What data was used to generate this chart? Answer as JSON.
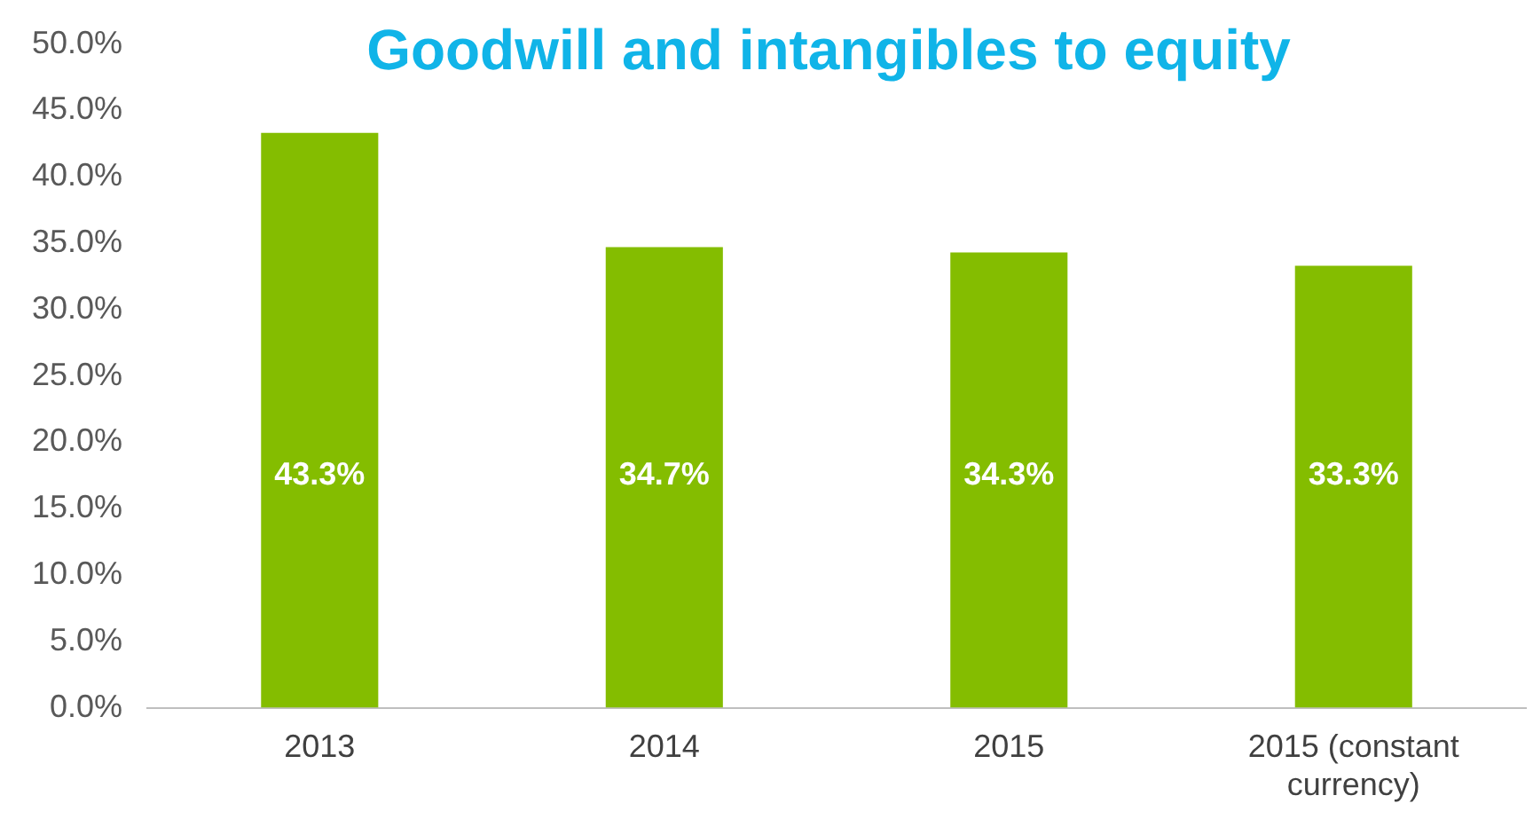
{
  "chart_data": {
    "type": "bar",
    "title": "Goodwill and intangibles to equity",
    "categories": [
      "2013",
      "2014",
      "2015",
      "2015 (constant currency)"
    ],
    "values": [
      43.3,
      34.7,
      34.3,
      33.3
    ],
    "value_labels": [
      "43.3%",
      "34.7%",
      "34.3%",
      "33.3%"
    ],
    "color": "#84bd00",
    "ylim": [
      0,
      50
    ],
    "yticks": [
      {
        "value": 0,
        "label": "0.0%"
      },
      {
        "value": 5,
        "label": "5.0%"
      },
      {
        "value": 10,
        "label": "10.0%"
      },
      {
        "value": 15,
        "label": "15.0%"
      },
      {
        "value": 20,
        "label": "20.0%"
      },
      {
        "value": 25,
        "label": "25.0%"
      },
      {
        "value": 30,
        "label": "30.0%"
      },
      {
        "value": 35,
        "label": "35.0%"
      },
      {
        "value": 40,
        "label": "40.0%"
      },
      {
        "value": 45,
        "label": "45.0%"
      },
      {
        "value": 50,
        "label": "50.0%"
      }
    ],
    "grid": false,
    "legend": false
  }
}
